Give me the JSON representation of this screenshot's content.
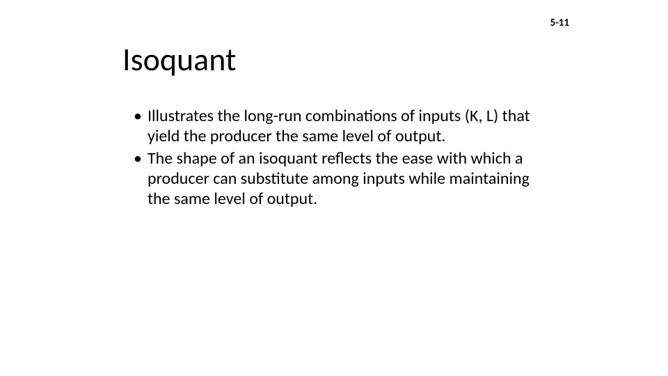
{
  "page_number": "5-11",
  "title": "Isoquant",
  "bullets": [
    {
      "text": "Illustrates the long-run combinations of inputs (K, L) that yield the producer the same level of output."
    },
    {
      "text": "The shape of an isoquant reflects the ease with which a producer can substitute among inputs while maintaining the same level of output."
    }
  ],
  "colors": {
    "background": "#ffffff",
    "text": "#000000"
  },
  "typography": {
    "title_fontsize": 46,
    "body_fontsize": 24,
    "page_number_fontsize": 15,
    "font_family": "Calibri"
  }
}
